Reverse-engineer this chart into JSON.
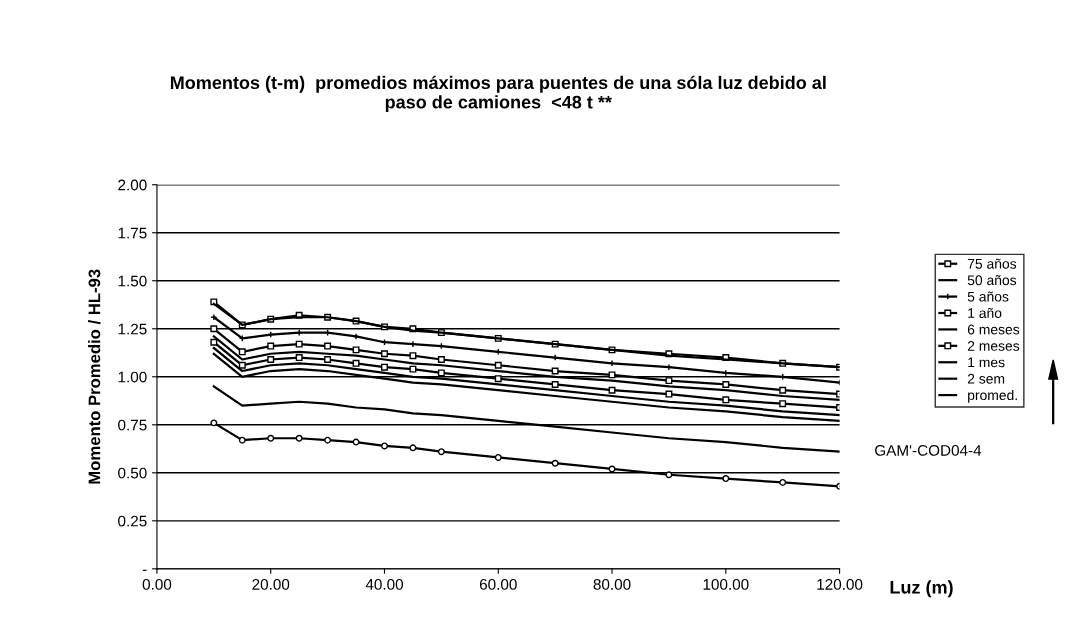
{
  "chart_data": {
    "type": "line",
    "title": "Momentos (t-m)  promedios máximos para puentes de una sóla luz debido al\npaso de camiones  <48 t **",
    "xlabel": "Luz (m)",
    "ylabel": "Momento Promedio / HL-93",
    "x": [
      10,
      15,
      20,
      25,
      30,
      35,
      40,
      45,
      50,
      60,
      70,
      80,
      90,
      100,
      110,
      120
    ],
    "series": [
      {
        "name": "75 años",
        "color": "#000000",
        "marker": "square",
        "values": [
          1.39,
          1.27,
          1.3,
          1.32,
          1.31,
          1.29,
          1.26,
          1.25,
          1.23,
          1.2,
          1.17,
          1.14,
          1.12,
          1.1,
          1.07,
          1.05
        ]
      },
      {
        "name": "50 años",
        "color": "#000000",
        "marker": "none",
        "values": [
          1.38,
          1.27,
          1.3,
          1.31,
          1.31,
          1.29,
          1.26,
          1.24,
          1.23,
          1.2,
          1.17,
          1.14,
          1.11,
          1.09,
          1.07,
          1.05
        ]
      },
      {
        "name": "5 años",
        "color": "#000000",
        "marker": "cross",
        "values": [
          1.31,
          1.2,
          1.22,
          1.23,
          1.23,
          1.21,
          1.18,
          1.17,
          1.16,
          1.13,
          1.1,
          1.07,
          1.05,
          1.02,
          1.0,
          0.97
        ]
      },
      {
        "name": "1 año",
        "color": "#000000",
        "marker": "square",
        "values": [
          1.25,
          1.13,
          1.16,
          1.17,
          1.16,
          1.14,
          1.12,
          1.11,
          1.09,
          1.06,
          1.03,
          1.01,
          0.98,
          0.96,
          0.93,
          0.91
        ]
      },
      {
        "name": "6 meses",
        "color": "#000000",
        "marker": "none",
        "values": [
          1.21,
          1.09,
          1.12,
          1.13,
          1.12,
          1.11,
          1.09,
          1.07,
          1.06,
          1.03,
          1.0,
          0.98,
          0.95,
          0.93,
          0.9,
          0.88
        ]
      },
      {
        "name": "2 meses",
        "color": "#000000",
        "marker": "square",
        "values": [
          1.18,
          1.06,
          1.09,
          1.1,
          1.09,
          1.07,
          1.05,
          1.04,
          1.02,
          0.99,
          0.96,
          0.93,
          0.91,
          0.88,
          0.86,
          0.84
        ]
      },
      {
        "name": "1 mes",
        "color": "#000000",
        "marker": "none",
        "values": [
          1.15,
          1.03,
          1.06,
          1.07,
          1.06,
          1.04,
          1.02,
          1.0,
          0.99,
          0.96,
          0.93,
          0.9,
          0.87,
          0.85,
          0.82,
          0.8
        ]
      },
      {
        "name": "2 sem",
        "color": "#000000",
        "marker": "none",
        "values": [
          1.12,
          1.0,
          1.03,
          1.04,
          1.03,
          1.01,
          0.99,
          0.97,
          0.96,
          0.93,
          0.9,
          0.87,
          0.84,
          0.82,
          0.79,
          0.77
        ]
      },
      {
        "name": "promed.",
        "color": "#000000",
        "marker": "none",
        "values": [
          0.95,
          0.85,
          0.86,
          0.87,
          0.86,
          0.84,
          0.83,
          0.81,
          0.8,
          0.77,
          0.74,
          0.71,
          0.68,
          0.66,
          0.63,
          0.61
        ]
      },
      {
        "color": "#000000",
        "marker": "circle",
        "values": [
          0.76,
          0.67,
          0.68,
          0.68,
          0.67,
          0.66,
          0.64,
          0.63,
          0.61,
          0.58,
          0.55,
          0.52,
          0.49,
          0.47,
          0.45,
          0.43
        ]
      }
    ],
    "xlim": [
      0,
      120
    ],
    "xticks": [
      {
        "value": 0,
        "label": "0.00"
      },
      {
        "value": 20,
        "label": "20.00"
      },
      {
        "value": 40,
        "label": "40.00"
      },
      {
        "value": 60,
        "label": "60.00"
      },
      {
        "value": 80,
        "label": "80.00"
      },
      {
        "value": 100,
        "label": "100.00"
      },
      {
        "value": 120,
        "label": "120.00"
      }
    ],
    "ylim": [
      0,
      2
    ],
    "yticks": [
      {
        "value": 0,
        "label": "-"
      },
      {
        "value": 0.25,
        "label": "0.25"
      },
      {
        "value": 0.5,
        "label": "0.50"
      },
      {
        "value": 0.75,
        "label": "0.75"
      },
      {
        "value": 1.0,
        "label": "1.00"
      },
      {
        "value": 1.25,
        "label": "1.25"
      },
      {
        "value": 1.5,
        "label": "1.50"
      },
      {
        "value": 1.75,
        "label": "1.75"
      },
      {
        "value": 2.0,
        "label": "2.00"
      }
    ],
    "grid": "y",
    "legend": "right",
    "line_style": "solid",
    "annotations": [
      {
        "text": "GAM'-COD04-4",
        "x": 120,
        "y": 0.61
      }
    ]
  }
}
